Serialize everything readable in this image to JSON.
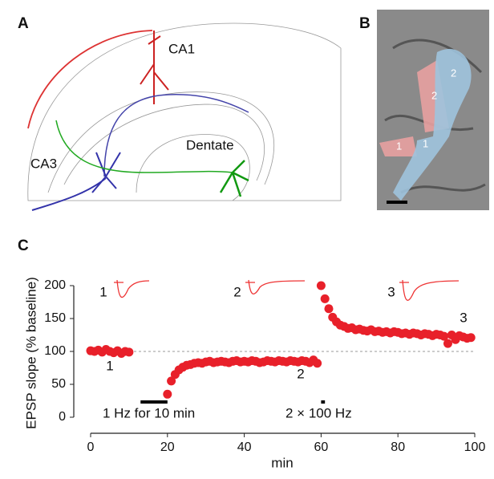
{
  "panel_a": {
    "label": "A",
    "annotations": [
      "CA1",
      "CA3",
      "Dentate"
    ]
  },
  "panel_b": {
    "label": "B",
    "annotations": [
      "2",
      "2",
      "1",
      "1"
    ]
  },
  "chart_data": {
    "type": "scatter",
    "label": "C",
    "xlabel": "min",
    "ylabel": "EPSP slope (% baseline)",
    "xlim": [
      0,
      100
    ],
    "ylim": [
      0,
      200
    ],
    "xticks": [
      0,
      20,
      40,
      60,
      80,
      100
    ],
    "yticks": [
      0,
      50,
      100,
      150,
      200
    ],
    "reference_line": 100,
    "color": "#e8202a",
    "x": [
      0,
      1,
      2,
      3,
      4,
      5,
      6,
      7,
      8,
      9,
      10,
      20,
      21,
      22,
      23,
      24,
      25,
      26,
      27,
      28,
      29,
      30,
      31,
      32,
      33,
      34,
      35,
      36,
      37,
      38,
      39,
      40,
      41,
      42,
      43,
      44,
      45,
      46,
      47,
      48,
      49,
      50,
      51,
      52,
      53,
      54,
      55,
      56,
      57,
      58,
      59,
      60,
      61,
      62,
      63,
      64,
      65,
      66,
      67,
      68,
      69,
      70,
      71,
      72,
      73,
      74,
      75,
      76,
      77,
      78,
      79,
      80,
      81,
      82,
      83,
      84,
      85,
      86,
      87,
      88,
      89,
      90,
      91,
      92,
      93,
      94,
      95,
      96,
      97,
      98,
      99
    ],
    "values": [
      101,
      100,
      102,
      99,
      103,
      100,
      98,
      101,
      97,
      100,
      99,
      35,
      55,
      65,
      72,
      76,
      79,
      80,
      82,
      83,
      82,
      84,
      85,
      83,
      84,
      85,
      84,
      83,
      85,
      86,
      84,
      85,
      84,
      86,
      85,
      83,
      84,
      86,
      85,
      84,
      86,
      85,
      84,
      86,
      85,
      84,
      86,
      85,
      83,
      87,
      82,
      200,
      180,
      165,
      152,
      145,
      140,
      138,
      135,
      136,
      133,
      134,
      132,
      131,
      133,
      130,
      131,
      129,
      130,
      128,
      130,
      129,
      127,
      128,
      126,
      128,
      127,
      125,
      127,
      126,
      124,
      126,
      125,
      123,
      112,
      125,
      118,
      124,
      122,
      120,
      121
    ],
    "annotations": [
      "1",
      "2",
      "3"
    ],
    "trace_labels": [
      "1",
      "2",
      "3"
    ],
    "stimulus_periods": [
      {
        "label": "1 Hz for 10 min",
        "start": 13,
        "end": 20
      },
      {
        "label": "2 × 100 Hz",
        "start": 60,
        "end": 61
      }
    ]
  }
}
